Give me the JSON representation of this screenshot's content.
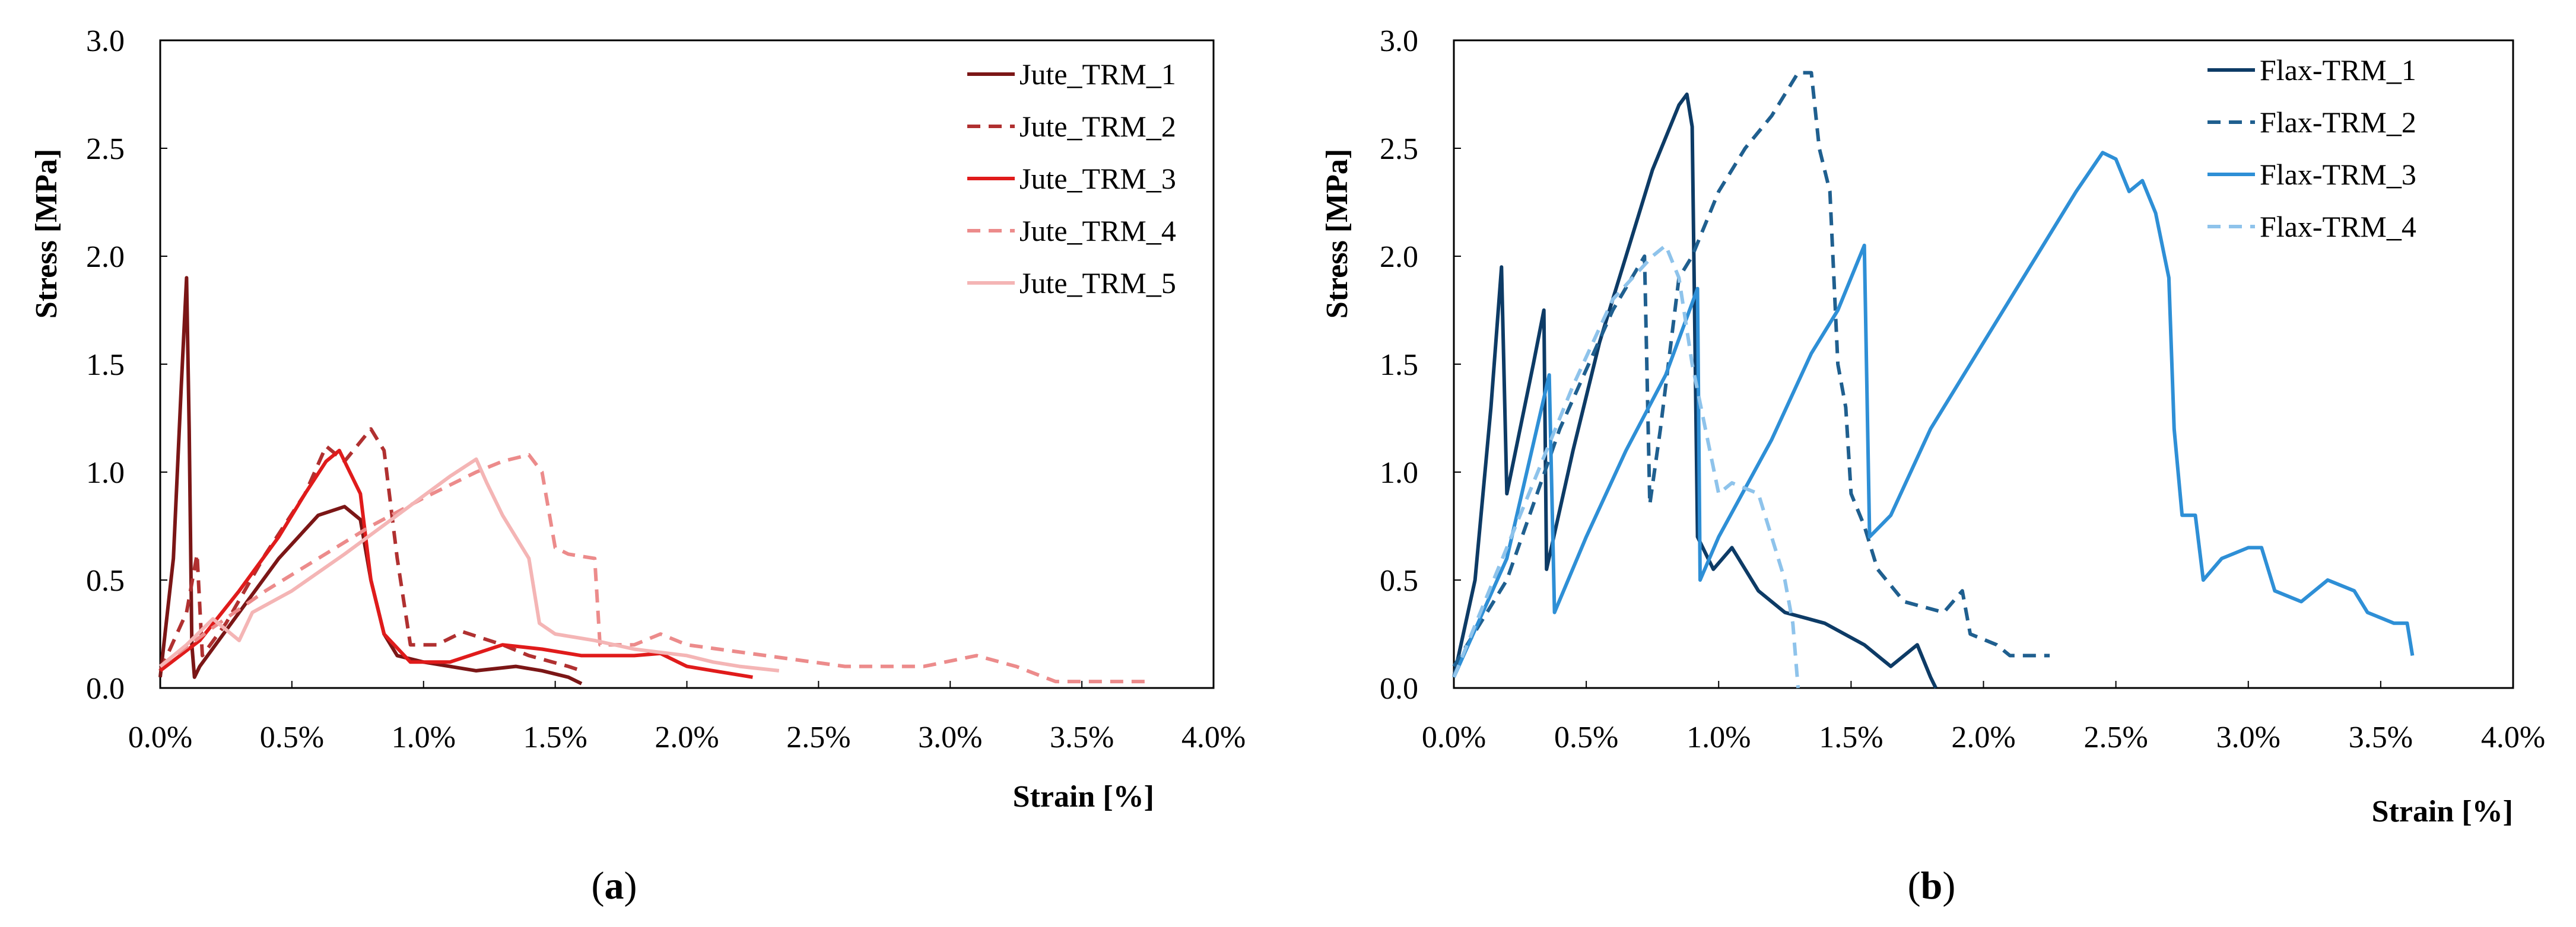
{
  "chart_data": [
    {
      "id": "a",
      "type": "line",
      "caption_open": "(",
      "caption_letter": "a",
      "caption_close": ")",
      "xlabel": "Strain [%]",
      "ylabel": "Stress [MPa]",
      "xlim": [
        0,
        4.0
      ],
      "ylim": [
        0,
        3.0
      ],
      "xticks": [
        "0.0%",
        "0.5%",
        "1.0%",
        "1.5%",
        "2.0%",
        "2.5%",
        "3.0%",
        "3.5%",
        "4.0%"
      ],
      "yticks": [
        "0.0",
        "0.5",
        "1.0",
        "1.5",
        "2.0",
        "2.5",
        "3.0"
      ],
      "legend_position": "top-right",
      "series": [
        {
          "name": "Jute_TRM_1",
          "color": "#7B1616",
          "dash": "solid",
          "points": [
            [
              0,
              0.05
            ],
            [
              0.05,
              0.6
            ],
            [
              0.08,
              1.4
            ],
            [
              0.1,
              1.9
            ],
            [
              0.11,
              1.2
            ],
            [
              0.12,
              0.2
            ],
            [
              0.13,
              0.05
            ],
            [
              0.15,
              0.1
            ],
            [
              0.3,
              0.35
            ],
            [
              0.45,
              0.6
            ],
            [
              0.6,
              0.8
            ],
            [
              0.7,
              0.84
            ],
            [
              0.76,
              0.78
            ],
            [
              0.8,
              0.5
            ],
            [
              0.85,
              0.25
            ],
            [
              0.9,
              0.15
            ],
            [
              1.0,
              0.12
            ],
            [
              1.1,
              0.1
            ],
            [
              1.2,
              0.08
            ],
            [
              1.35,
              0.1
            ],
            [
              1.45,
              0.08
            ],
            [
              1.55,
              0.05
            ],
            [
              1.6,
              0.02
            ]
          ]
        },
        {
          "name": "Jute_TRM_2",
          "color": "#B03030",
          "dash": "dashed",
          "points": [
            [
              0,
              0.08
            ],
            [
              0.1,
              0.35
            ],
            [
              0.14,
              0.62
            ],
            [
              0.16,
              0.15
            ],
            [
              0.25,
              0.3
            ],
            [
              0.4,
              0.62
            ],
            [
              0.55,
              0.9
            ],
            [
              0.63,
              1.12
            ],
            [
              0.7,
              1.05
            ],
            [
              0.8,
              1.2
            ],
            [
              0.85,
              1.1
            ],
            [
              0.9,
              0.6
            ],
            [
              0.95,
              0.2
            ],
            [
              1.05,
              0.2
            ],
            [
              1.15,
              0.26
            ],
            [
              1.3,
              0.2
            ],
            [
              1.4,
              0.15
            ],
            [
              1.55,
              0.1
            ],
            [
              1.6,
              0.08
            ]
          ]
        },
        {
          "name": "Jute_TRM_3",
          "color": "#E01B1B",
          "dash": "solid",
          "points": [
            [
              0,
              0.08
            ],
            [
              0.15,
              0.22
            ],
            [
              0.3,
              0.45
            ],
            [
              0.45,
              0.7
            ],
            [
              0.55,
              0.9
            ],
            [
              0.63,
              1.05
            ],
            [
              0.68,
              1.1
            ],
            [
              0.72,
              1.0
            ],
            [
              0.76,
              0.9
            ],
            [
              0.8,
              0.5
            ],
            [
              0.85,
              0.25
            ],
            [
              0.95,
              0.12
            ],
            [
              1.1,
              0.12
            ],
            [
              1.3,
              0.2
            ],
            [
              1.45,
              0.18
            ],
            [
              1.6,
              0.15
            ],
            [
              1.8,
              0.15
            ],
            [
              1.9,
              0.16
            ],
            [
              2.0,
              0.1
            ],
            [
              2.1,
              0.08
            ],
            [
              2.25,
              0.05
            ]
          ]
        },
        {
          "name": "Jute_TRM_4",
          "color": "#EC8B8B",
          "dash": "dashed",
          "points": [
            [
              0,
              0.1
            ],
            [
              0.2,
              0.28
            ],
            [
              0.4,
              0.45
            ],
            [
              0.6,
              0.6
            ],
            [
              0.8,
              0.75
            ],
            [
              1.0,
              0.88
            ],
            [
              1.2,
              1.0
            ],
            [
              1.3,
              1.05
            ],
            [
              1.4,
              1.08
            ],
            [
              1.45,
              1.0
            ],
            [
              1.5,
              0.65
            ],
            [
              1.55,
              0.62
            ],
            [
              1.65,
              0.6
            ],
            [
              1.67,
              0.2
            ],
            [
              1.8,
              0.2
            ],
            [
              1.9,
              0.25
            ],
            [
              2.0,
              0.2
            ],
            [
              2.3,
              0.15
            ],
            [
              2.6,
              0.1
            ],
            [
              2.9,
              0.1
            ],
            [
              3.1,
              0.15
            ],
            [
              3.25,
              0.1
            ],
            [
              3.4,
              0.03
            ],
            [
              3.6,
              0.03
            ],
            [
              3.75,
              0.03
            ]
          ]
        },
        {
          "name": "Jute_TRM_5",
          "color": "#F4B5B5",
          "dash": "solid",
          "points": [
            [
              0,
              0.1
            ],
            [
              0.1,
              0.2
            ],
            [
              0.2,
              0.32
            ],
            [
              0.3,
              0.22
            ],
            [
              0.35,
              0.35
            ],
            [
              0.5,
              0.45
            ],
            [
              0.7,
              0.62
            ],
            [
              0.9,
              0.8
            ],
            [
              1.1,
              0.98
            ],
            [
              1.2,
              1.06
            ],
            [
              1.24,
              0.95
            ],
            [
              1.3,
              0.8
            ],
            [
              1.35,
              0.7
            ],
            [
              1.4,
              0.6
            ],
            [
              1.44,
              0.3
            ],
            [
              1.5,
              0.25
            ],
            [
              1.65,
              0.22
            ],
            [
              1.8,
              0.18
            ],
            [
              2.0,
              0.15
            ],
            [
              2.1,
              0.12
            ],
            [
              2.2,
              0.1
            ],
            [
              2.35,
              0.08
            ]
          ]
        }
      ]
    },
    {
      "id": "b",
      "type": "line",
      "caption_open": "(",
      "caption_letter": "b",
      "caption_close": ")",
      "xlabel": "Strain [%]",
      "ylabel": "Stress [MPa]",
      "xlim": [
        0,
        4.0
      ],
      "ylim": [
        0,
        3.0
      ],
      "xticks": [
        "0.0%",
        "0.5%",
        "1.0%",
        "1.5%",
        "2.0%",
        "2.5%",
        "3.0%",
        "3.5%",
        "4.0%"
      ],
      "yticks": [
        "0.0",
        "0.5",
        "1.0",
        "1.5",
        "2.0",
        "2.5",
        "3.0"
      ],
      "legend_position": "top-right",
      "series": [
        {
          "name": "Flax-TRM_1",
          "color": "#0D3B66",
          "dash": "solid",
          "points": [
            [
              0,
              0.05
            ],
            [
              0.08,
              0.5
            ],
            [
              0.14,
              1.3
            ],
            [
              0.18,
              1.95
            ],
            [
              0.2,
              0.9
            ],
            [
              0.25,
              1.2
            ],
            [
              0.3,
              1.5
            ],
            [
              0.34,
              1.75
            ],
            [
              0.35,
              0.55
            ],
            [
              0.45,
              1.1
            ],
            [
              0.55,
              1.6
            ],
            [
              0.65,
              2.0
            ],
            [
              0.75,
              2.4
            ],
            [
              0.85,
              2.7
            ],
            [
              0.88,
              2.75
            ],
            [
              0.9,
              2.6
            ],
            [
              0.92,
              0.7
            ],
            [
              0.98,
              0.55
            ],
            [
              1.05,
              0.65
            ],
            [
              1.15,
              0.45
            ],
            [
              1.25,
              0.35
            ],
            [
              1.4,
              0.3
            ],
            [
              1.55,
              0.2
            ],
            [
              1.65,
              0.1
            ],
            [
              1.75,
              0.2
            ],
            [
              1.8,
              0.05
            ],
            [
              1.82,
              0.0
            ]
          ]
        },
        {
          "name": "Flax-TRM_2",
          "color": "#1F5F8F",
          "dash": "dashed",
          "points": [
            [
              0,
              0.1
            ],
            [
              0.2,
              0.5
            ],
            [
              0.4,
              1.2
            ],
            [
              0.6,
              1.75
            ],
            [
              0.72,
              2.0
            ],
            [
              0.74,
              0.85
            ],
            [
              0.78,
              1.2
            ],
            [
              0.85,
              1.9
            ],
            [
              0.9,
              2.0
            ],
            [
              1.0,
              2.3
            ],
            [
              1.1,
              2.5
            ],
            [
              1.2,
              2.65
            ],
            [
              1.3,
              2.85
            ],
            [
              1.35,
              2.85
            ],
            [
              1.38,
              2.5
            ],
            [
              1.42,
              2.3
            ],
            [
              1.45,
              1.5
            ],
            [
              1.48,
              1.3
            ],
            [
              1.5,
              0.9
            ],
            [
              1.55,
              0.75
            ],
            [
              1.6,
              0.55
            ],
            [
              1.7,
              0.4
            ],
            [
              1.85,
              0.35
            ],
            [
              1.92,
              0.45
            ],
            [
              1.95,
              0.25
            ],
            [
              2.05,
              0.2
            ],
            [
              2.1,
              0.15
            ],
            [
              2.2,
              0.15
            ],
            [
              2.25,
              0.15
            ]
          ]
        },
        {
          "name": "Flax-TRM_3",
          "color": "#2E8FD6",
          "dash": "solid",
          "points": [
            [
              0,
              0.05
            ],
            [
              0.2,
              0.6
            ],
            [
              0.36,
              1.45
            ],
            [
              0.38,
              0.35
            ],
            [
              0.5,
              0.7
            ],
            [
              0.65,
              1.1
            ],
            [
              0.8,
              1.45
            ],
            [
              0.92,
              1.85
            ],
            [
              0.93,
              0.5
            ],
            [
              1.0,
              0.7
            ],
            [
              1.2,
              1.15
            ],
            [
              1.35,
              1.55
            ],
            [
              1.45,
              1.75
            ],
            [
              1.55,
              2.05
            ],
            [
              1.57,
              0.7
            ],
            [
              1.65,
              0.8
            ],
            [
              1.8,
              1.2
            ],
            [
              2.0,
              1.6
            ],
            [
              2.2,
              2.0
            ],
            [
              2.35,
              2.3
            ],
            [
              2.45,
              2.48
            ],
            [
              2.5,
              2.45
            ],
            [
              2.55,
              2.3
            ],
            [
              2.6,
              2.35
            ],
            [
              2.65,
              2.2
            ],
            [
              2.7,
              1.9
            ],
            [
              2.72,
              1.2
            ],
            [
              2.75,
              0.8
            ],
            [
              2.8,
              0.8
            ],
            [
              2.83,
              0.5
            ],
            [
              2.9,
              0.6
            ],
            [
              3.0,
              0.65
            ],
            [
              3.05,
              0.65
            ],
            [
              3.1,
              0.45
            ],
            [
              3.2,
              0.4
            ],
            [
              3.3,
              0.5
            ],
            [
              3.4,
              0.45
            ],
            [
              3.45,
              0.35
            ],
            [
              3.55,
              0.3
            ],
            [
              3.6,
              0.3
            ],
            [
              3.62,
              0.15
            ]
          ]
        },
        {
          "name": "Flax-TRM_4",
          "color": "#8EC3EB",
          "dash": "dashed",
          "points": [
            [
              0,
              0.05
            ],
            [
              0.15,
              0.5
            ],
            [
              0.3,
              0.95
            ],
            [
              0.45,
              1.4
            ],
            [
              0.6,
              1.8
            ],
            [
              0.75,
              2.0
            ],
            [
              0.8,
              2.05
            ],
            [
              0.85,
              1.9
            ],
            [
              0.9,
              1.5
            ],
            [
              0.95,
              1.2
            ],
            [
              1.0,
              0.9
            ],
            [
              1.05,
              0.95
            ],
            [
              1.15,
              0.9
            ],
            [
              1.2,
              0.7
            ],
            [
              1.25,
              0.5
            ],
            [
              1.28,
              0.3
            ],
            [
              1.3,
              0.0
            ]
          ]
        }
      ]
    }
  ]
}
